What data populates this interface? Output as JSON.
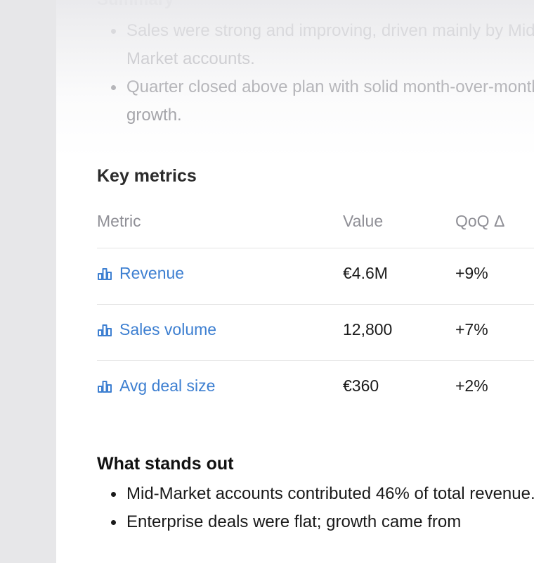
{
  "summary": {
    "heading": "Summary",
    "bullets": [
      "Sales were strong and improving, driven mainly by Mid-Market accounts.",
      "Quarter closed above plan with solid month-over-month growth."
    ]
  },
  "key_metrics": {
    "heading": "Key metrics",
    "columns": {
      "metric": "Metric",
      "value": "Value",
      "qoq": "QoQ Δ"
    },
    "rows": [
      {
        "metric": "Revenue",
        "value": "€4.6M",
        "qoq": "+9%",
        "icon": "bar-chart-icon"
      },
      {
        "metric": "Sales volume",
        "value": "12,800",
        "qoq": "+7%",
        "icon": "bar-chart-icon"
      },
      {
        "metric": "Avg deal size",
        "value": "€360",
        "qoq": "+2%",
        "icon": "bar-chart-icon"
      }
    ]
  },
  "what_stands_out": {
    "heading": "What stands out",
    "bullets": [
      "Mid-Market accounts contributed 46% of total revenue.",
      "Enterprise deals were flat; growth came from"
    ]
  },
  "colors": {
    "link": "#3d7fd1",
    "left_rail": "#e7e7e9",
    "muted_text": "#8f8f96",
    "divider": "#e3e3e3"
  }
}
